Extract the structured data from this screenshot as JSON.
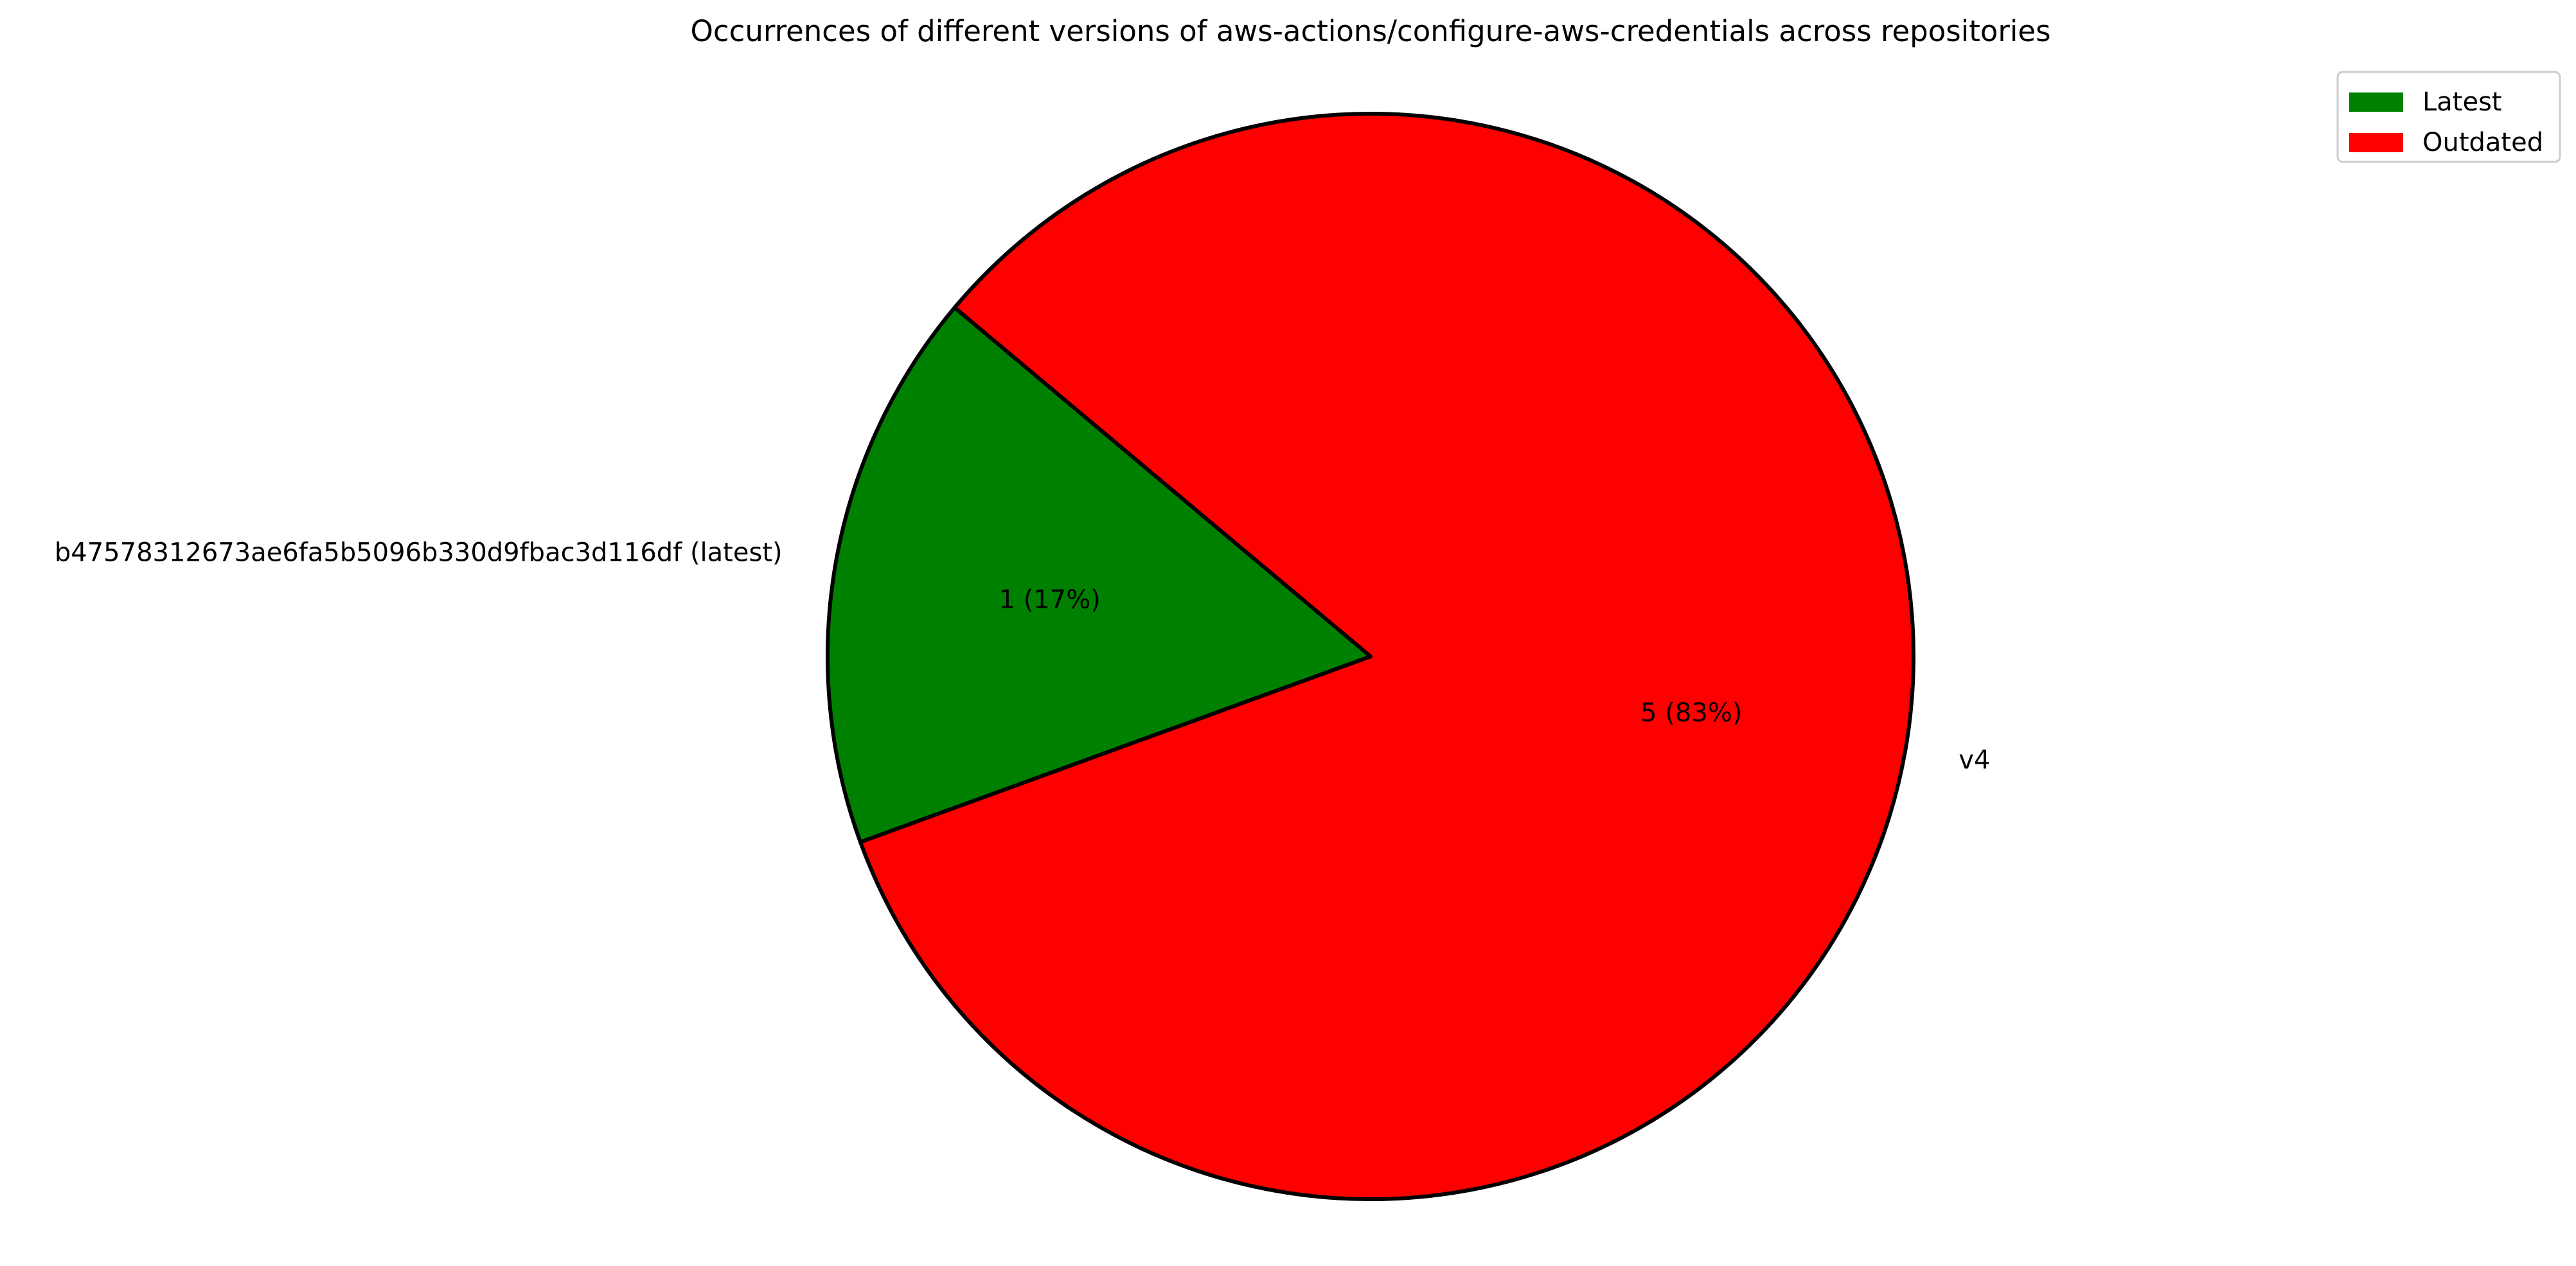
{
  "chart_data": {
    "type": "pie",
    "title": "Occurrences of different versions of aws-actions/configure-aws-credentials across repositories",
    "slices": [
      {
        "label": "b47578312673ae6fa5b5096b330d9fbac3d116df (latest)",
        "value": 1,
        "percent": "17%",
        "autopct": "1 (17%)",
        "color": "#008000",
        "category": "Latest"
      },
      {
        "label": "v4",
        "value": 5,
        "percent": "83%",
        "autopct": "5 (83%)",
        "color": "#ff0000",
        "category": "Outdated"
      }
    ],
    "legend": {
      "placement": "top-right",
      "entries": [
        {
          "name": "Latest",
          "color": "#008000"
        },
        {
          "name": "Outdated",
          "color": "#ff0000"
        }
      ]
    },
    "edge_color": "#000000"
  }
}
